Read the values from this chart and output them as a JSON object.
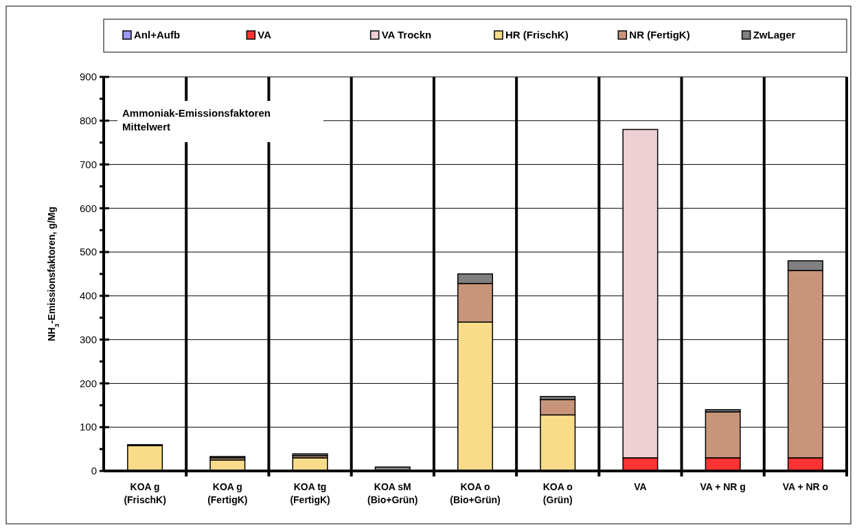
{
  "chart_data": {
    "type": "bar",
    "stacked": true,
    "ylabel": "NH$_{3}$-Emissionsfaktoren,  g/Mg",
    "annotations": [
      "Ammoniak-Emissionsfaktoren\nMittelwert"
    ],
    "categories": [
      "KOA g\n(FrischK)",
      "KOA g\n(FertigK)",
      "KOA tg\n(FertigK)",
      "KOA sM\n(Bio+Grün)",
      "KOA o\n(Bio+Grün)",
      "KOA o\n(Grün)",
      "VA",
      "VA + NR g",
      "VA + NR o"
    ],
    "series": [
      {
        "name": "Anl+Aufb",
        "color": "#9999ff",
        "values": [
          0,
          0,
          0,
          0,
          0,
          0,
          0,
          0,
          0
        ]
      },
      {
        "name": "VA",
        "color": "#ff3333",
        "values": [
          0,
          0,
          0,
          0,
          0,
          0,
          30,
          30,
          30
        ]
      },
      {
        "name": "VA Trockn",
        "color": "#eecfd3",
        "values": [
          0,
          0,
          0,
          0,
          0,
          0,
          750,
          0,
          0
        ]
      },
      {
        "name": "HR (FrischK)",
        "color": "#f9dc8a",
        "values": [
          58,
          25,
          30,
          2,
          340,
          128,
          0,
          0,
          0
        ]
      },
      {
        "name": "NR (FertigK)",
        "color": "#c8957a",
        "values": [
          0,
          5,
          5,
          0,
          88,
          35,
          0,
          105,
          428
        ]
      },
      {
        "name": "ZwLager",
        "color": "#808080",
        "values": [
          2,
          3,
          4,
          7,
          22,
          7,
          0,
          5,
          22
        ]
      }
    ],
    "ylim": [
      0,
      900
    ],
    "yticks": [
      0,
      {
        "value": 50,
        "label": null
      },
      100,
      {
        "value": 150,
        "label": null
      },
      200,
      {
        "value": 250,
        "label": null
      },
      300,
      {
        "value": 350,
        "label": null
      },
      400,
      {
        "value": 450,
        "label": null
      },
      500,
      {
        "value": 550,
        "label": null
      },
      600,
      {
        "value": 650,
        "label": null
      },
      700,
      {
        "value": 750,
        "label": null
      },
      800,
      {
        "value": 850,
        "label": null
      },
      900
    ],
    "grid": "y",
    "legend": "top"
  }
}
